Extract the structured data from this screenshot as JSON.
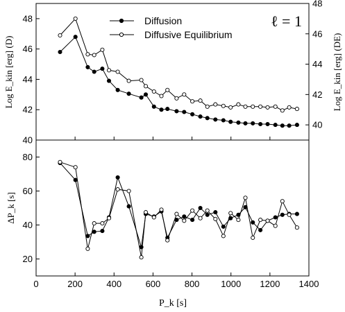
{
  "chart_data": [
    {
      "type": "line",
      "panel": "top",
      "ylabel_left": "Log E_kin [erg] (D)",
      "ylabel_right": "Log E_kin [erg] (DE)",
      "annotation": "ℓ = 1",
      "xlim": [
        0,
        1400
      ],
      "ylim_left": [
        40,
        49
      ],
      "ylim_right": [
        39,
        48
      ],
      "yticks_left": [
        40,
        42,
        44,
        46,
        48
      ],
      "yticks_right": [
        40,
        42,
        44,
        46,
        48
      ],
      "legend_position": "top-center",
      "series": [
        {
          "name": "Diffusion",
          "axis": "left",
          "marker": "filled-circle",
          "x": [
            123,
            202,
            265,
            298,
            340,
            374,
            419,
            476,
            540,
            563,
            605,
            643,
            674,
            721,
            760,
            802,
            843,
            879,
            920,
            961,
            998,
            1038,
            1074,
            1112,
            1151,
            1188,
            1228,
            1264,
            1299,
            1339
          ],
          "y": [
            45.8,
            46.8,
            44.8,
            44.5,
            44.7,
            43.9,
            43.3,
            43.05,
            42.8,
            43.0,
            42.2,
            42.0,
            42.05,
            41.9,
            41.85,
            41.7,
            41.55,
            41.45,
            41.35,
            41.3,
            41.2,
            41.15,
            41.1,
            41.1,
            41.05,
            41.05,
            41.0,
            40.95,
            40.95,
            41.0
          ]
        },
        {
          "name": "Diffusive Equilibrium",
          "axis": "right",
          "marker": "open-circle",
          "x": [
            123,
            202,
            265,
            298,
            340,
            374,
            419,
            476,
            540,
            563,
            605,
            643,
            674,
            721,
            760,
            802,
            843,
            879,
            920,
            961,
            998,
            1038,
            1074,
            1112,
            1151,
            1188,
            1228,
            1264,
            1299,
            1339
          ],
          "y": [
            45.9,
            47.0,
            44.65,
            44.6,
            44.95,
            43.6,
            43.5,
            42.9,
            42.95,
            42.55,
            42.2,
            41.9,
            42.3,
            41.75,
            42.0,
            41.55,
            41.6,
            41.2,
            41.35,
            41.25,
            41.15,
            41.35,
            41.2,
            41.2,
            41.2,
            41.15,
            41.2,
            40.95,
            41.15,
            41.05
          ]
        }
      ]
    },
    {
      "type": "line",
      "panel": "bottom",
      "xlabel": "P_k [s]",
      "ylabel": "ΔP_k [s]",
      "xlim": [
        0,
        1400
      ],
      "ylim": [
        10,
        90
      ],
      "xticks": [
        0,
        200,
        400,
        600,
        800,
        1000,
        1200,
        1400
      ],
      "yticks": [
        20,
        40,
        60,
        80
      ],
      "series": [
        {
          "name": "Diffusion",
          "marker": "filled-circle",
          "x": [
            123,
            202,
            265,
            298,
            340,
            374,
            419,
            476,
            540,
            563,
            605,
            643,
            674,
            721,
            760,
            802,
            843,
            879,
            920,
            961,
            998,
            1038,
            1074,
            1112,
            1151,
            1188,
            1228,
            1264,
            1299,
            1339
          ],
          "y": [
            76.5,
            66.5,
            33.5,
            36.0,
            36.5,
            44.5,
            68.0,
            51.0,
            27.0,
            46.5,
            45.0,
            48.0,
            32.5,
            43.0,
            45.0,
            43.0,
            50.0,
            46.0,
            47.5,
            39.0,
            44.0,
            46.0,
            50.5,
            41.5,
            37.0,
            42.5,
            44.5,
            46.0,
            46.5,
            46.5
          ]
        },
        {
          "name": "Diffusive Equilibrium",
          "marker": "open-circle",
          "x": [
            123,
            202,
            265,
            298,
            340,
            374,
            419,
            476,
            540,
            563,
            605,
            643,
            674,
            721,
            760,
            802,
            843,
            879,
            920,
            961,
            998,
            1038,
            1074,
            1112,
            1151,
            1188,
            1228,
            1264,
            1299,
            1339
          ],
          "y": [
            77.0,
            74.0,
            26.0,
            41.0,
            41.0,
            44.0,
            61.0,
            60.0,
            21.0,
            47.5,
            44.5,
            49.0,
            31.0,
            46.5,
            42.5,
            48.5,
            44.0,
            48.5,
            43.5,
            33.5,
            47.0,
            43.0,
            56.0,
            32.5,
            43.0,
            42.5,
            39.5,
            54.0,
            46.0,
            38.5
          ]
        }
      ]
    }
  ]
}
